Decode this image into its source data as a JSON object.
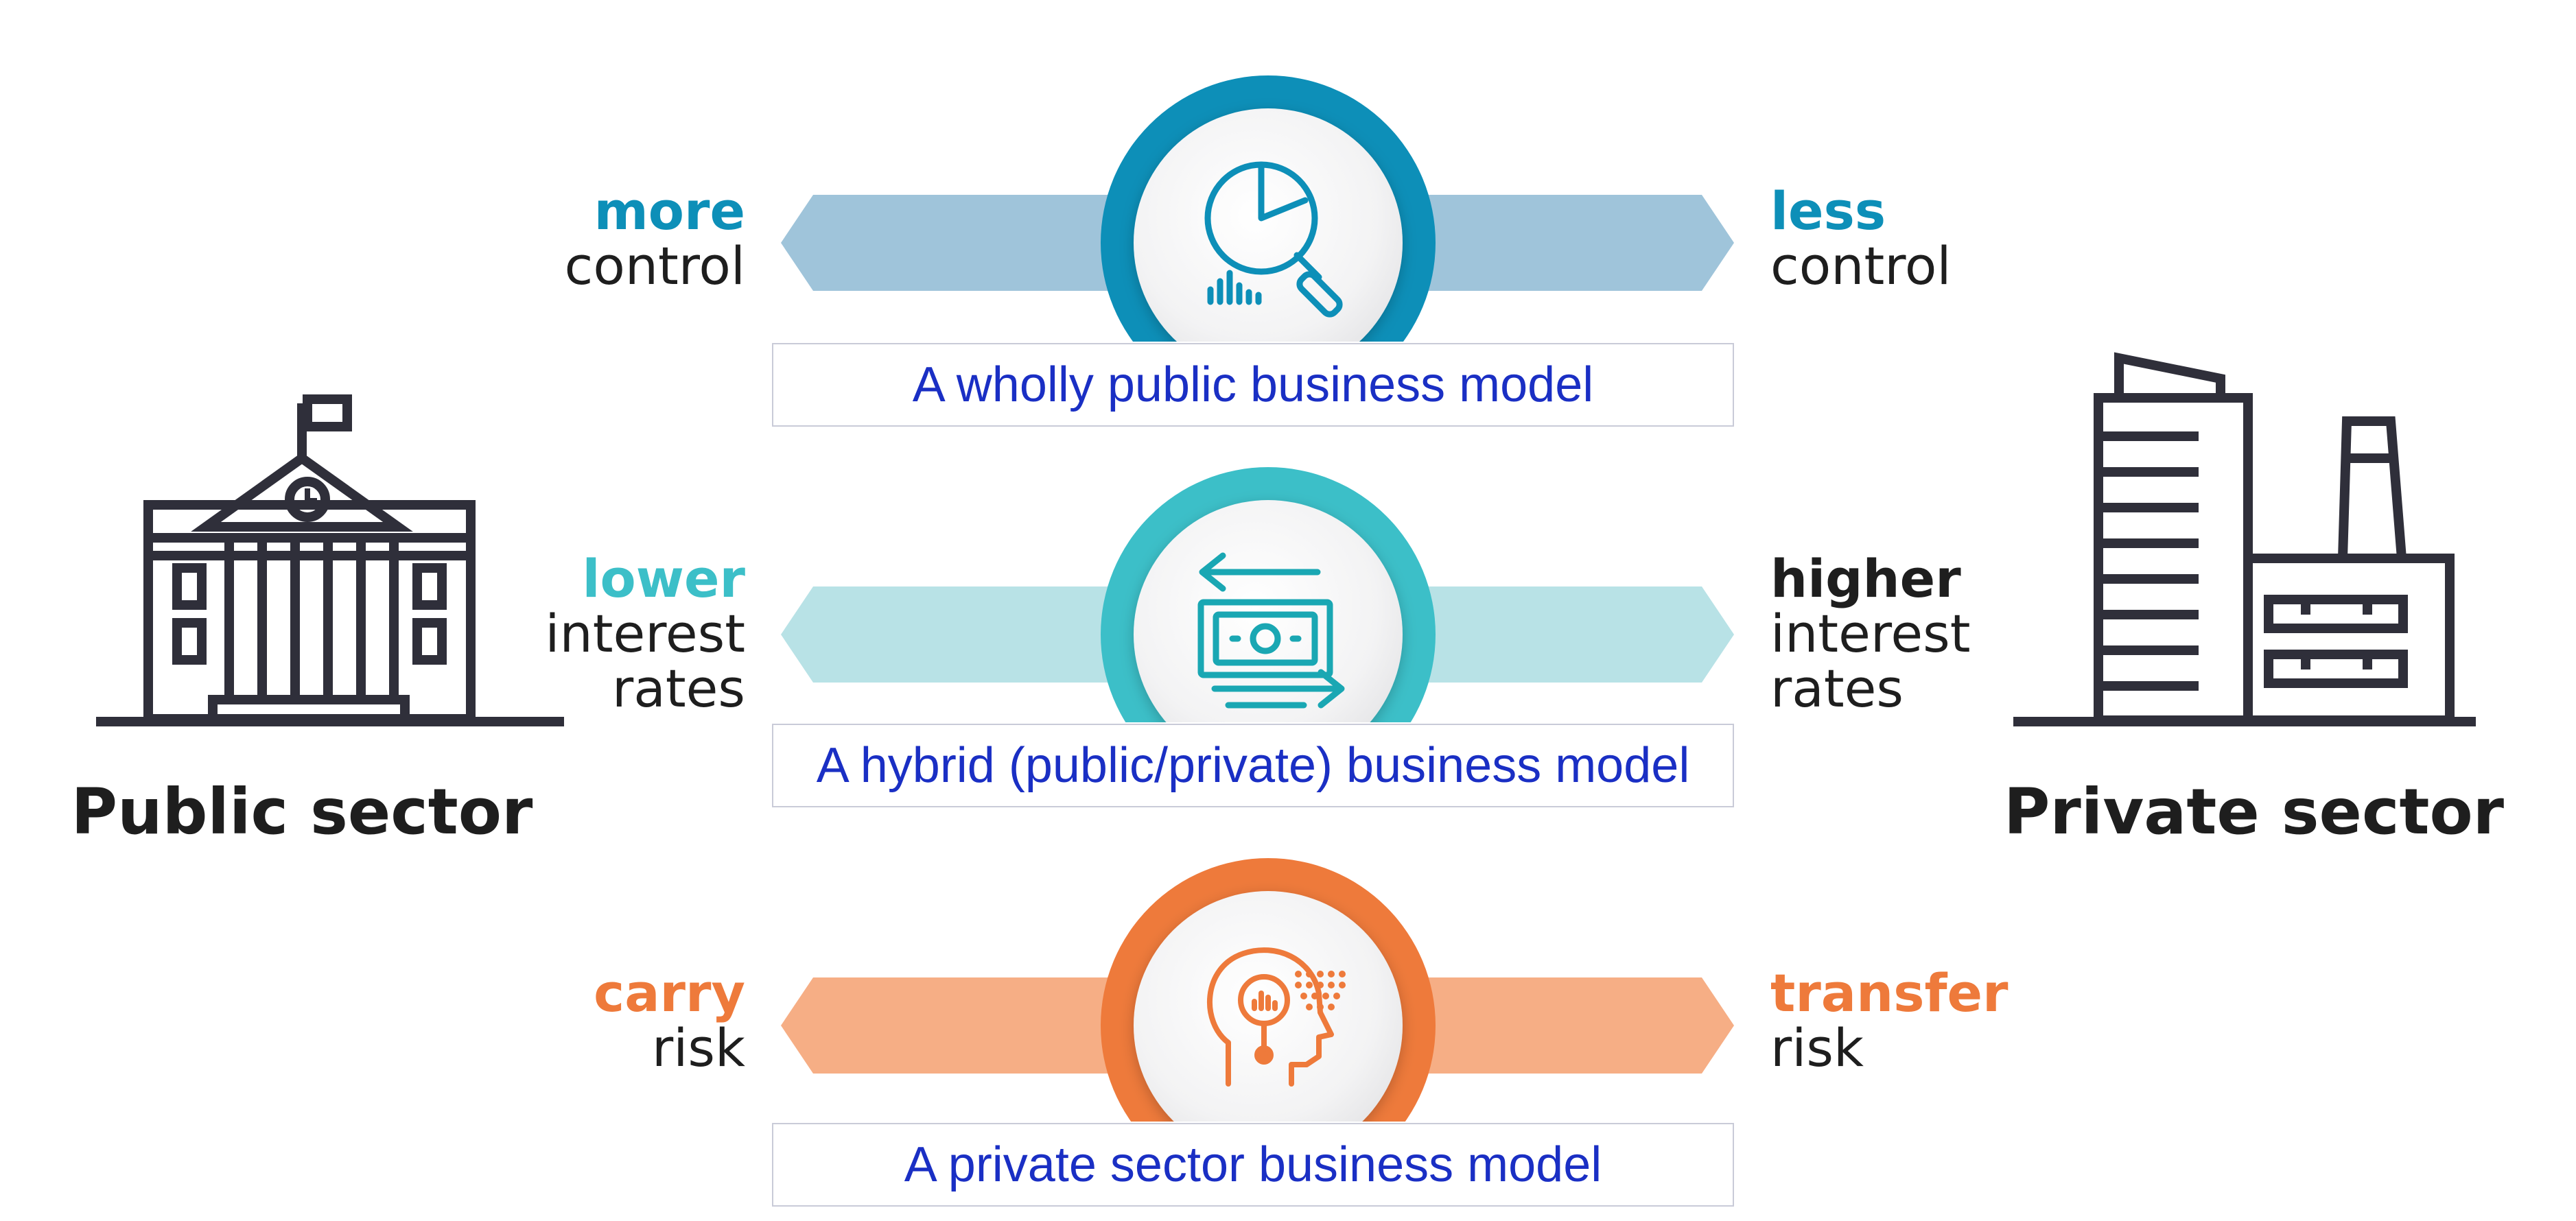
{
  "left_sector": {
    "label": "Public sector",
    "icon": "government-building-icon"
  },
  "right_sector": {
    "label": "Private sector",
    "icon": "office-building-icon"
  },
  "rows": [
    {
      "color_dark": "#0d8fb8",
      "color_light": "#9fc4da",
      "icon": "chart-magnifier-icon",
      "left_keyword": "more",
      "left_text": [
        "control"
      ],
      "right_keyword": "less",
      "right_text": [
        "control"
      ],
      "caption": "A wholly public business model"
    },
    {
      "color_dark": "#3cbfc8",
      "color_light": "#b8e2e6",
      "icon": "money-exchange-icon",
      "left_keyword": "lower",
      "left_text": [
        "interest",
        "rates"
      ],
      "right_keyword": "higher",
      "right_text": [
        "interest",
        "rates"
      ],
      "caption": "A hybrid (public/private) business model"
    },
    {
      "color_dark": "#ee7a3b",
      "color_light": "#f6ae85",
      "icon": "head-analysis-icon",
      "left_keyword": "carry",
      "left_text": [
        "risk"
      ],
      "right_keyword": "transfer",
      "right_text": [
        "risk"
      ],
      "caption": "A private sector business model"
    }
  ]
}
